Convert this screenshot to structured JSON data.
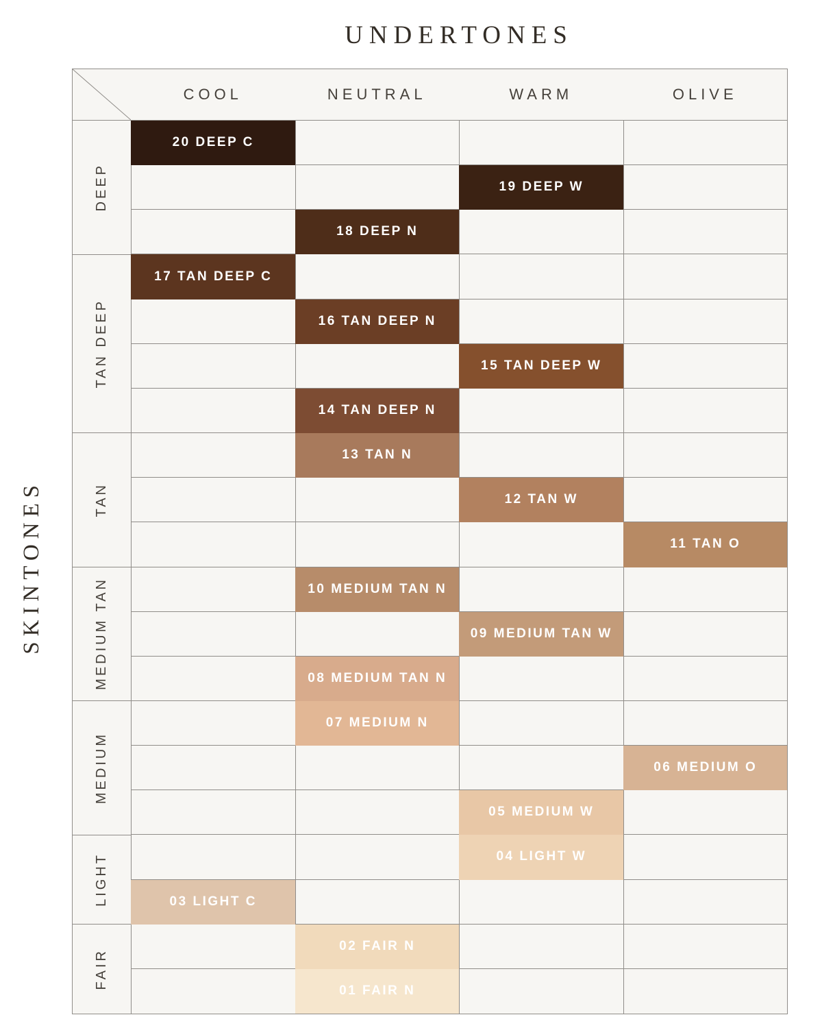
{
  "chart_data": {
    "type": "heatmap",
    "title": "UNDERTONES",
    "x_axis_label": "UNDERTONES",
    "y_axis_label": "SKINTONES",
    "columns": [
      "COOL",
      "NEUTRAL",
      "WARM",
      "OLIVE"
    ],
    "row_groups": [
      {
        "label": "DEEP",
        "row_span": 3
      },
      {
        "label": "TAN DEEP",
        "row_span": 4
      },
      {
        "label": "TAN",
        "row_span": 3
      },
      {
        "label": "MEDIUM TAN",
        "row_span": 3
      },
      {
        "label": "MEDIUM",
        "row_span": 3
      },
      {
        "label": "LIGHT",
        "row_span": 2
      },
      {
        "label": "FAIR",
        "row_span": 2
      }
    ],
    "rows": [
      {
        "row": 1,
        "group": "DEEP",
        "column": "COOL",
        "shade": "20 DEEP C",
        "color": "#2f1a10"
      },
      {
        "row": 2,
        "group": "DEEP",
        "column": "WARM",
        "shade": "19 DEEP W",
        "color": "#3b2213"
      },
      {
        "row": 3,
        "group": "DEEP",
        "column": "NEUTRAL",
        "shade": "18 DEEP N",
        "color": "#4e2d19"
      },
      {
        "row": 4,
        "group": "TAN DEEP",
        "column": "COOL",
        "shade": "17 TAN DEEP C",
        "color": "#5c351f"
      },
      {
        "row": 5,
        "group": "TAN DEEP",
        "column": "NEUTRAL",
        "shade": "16 TAN DEEP N",
        "color": "#6b3e25"
      },
      {
        "row": 6,
        "group": "TAN DEEP",
        "column": "WARM",
        "shade": "15 TAN DEEP W",
        "color": "#85502d"
      },
      {
        "row": 7,
        "group": "TAN DEEP",
        "column": "NEUTRAL",
        "shade": "14 TAN DEEP N",
        "color": "#7d4c33"
      },
      {
        "row": 8,
        "group": "TAN",
        "column": "NEUTRAL",
        "shade": "13 TAN N",
        "color": "#a87a5c"
      },
      {
        "row": 9,
        "group": "TAN",
        "column": "WARM",
        "shade": "12 TAN W",
        "color": "#b2815f"
      },
      {
        "row": 10,
        "group": "TAN",
        "column": "OLIVE",
        "shade": "11 TAN O",
        "color": "#b78a64"
      },
      {
        "row": 11,
        "group": "MEDIUM TAN",
        "column": "NEUTRAL",
        "shade": "10 MEDIUM TAN N",
        "color": "#b78c6a"
      },
      {
        "row": 12,
        "group": "MEDIUM TAN",
        "column": "WARM",
        "shade": "09 MEDIUM TAN W",
        "color": "#c39b79"
      },
      {
        "row": 13,
        "group": "MEDIUM TAN",
        "column": "NEUTRAL",
        "shade": "08 MEDIUM TAN N",
        "color": "#d8ab8c"
      },
      {
        "row": 14,
        "group": "MEDIUM",
        "column": "NEUTRAL",
        "shade": "07 MEDIUM N",
        "color": "#e2b795"
      },
      {
        "row": 15,
        "group": "MEDIUM",
        "column": "OLIVE",
        "shade": "06 MEDIUM O",
        "color": "#d7b394"
      },
      {
        "row": 16,
        "group": "MEDIUM",
        "column": "WARM",
        "shade": "05 MEDIUM W",
        "color": "#e8c7a6"
      },
      {
        "row": 17,
        "group": "LIGHT",
        "column": "WARM",
        "shade": "04 LIGHT W",
        "color": "#eed3b4"
      },
      {
        "row": 18,
        "group": "LIGHT",
        "column": "COOL",
        "shade": "03 LIGHT C",
        "color": "#dfc4ab"
      },
      {
        "row": 19,
        "group": "FAIR",
        "column": "NEUTRAL",
        "shade": "02 FAIR N",
        "color": "#f1dabb"
      },
      {
        "row": 20,
        "group": "FAIR",
        "column": "NEUTRAL",
        "shade": "01 FAIR N",
        "color": "#f6e6cd"
      }
    ],
    "colors": {
      "grid_line": "#8f8c88",
      "cell_background": "#f7f6f3",
      "heading_text": "#45403a",
      "title_text": "#332d26",
      "shade_text": "#ffffff"
    },
    "layout": {
      "legend": "none",
      "grid": "on",
      "total_rows": 20,
      "total_columns": 4
    }
  }
}
